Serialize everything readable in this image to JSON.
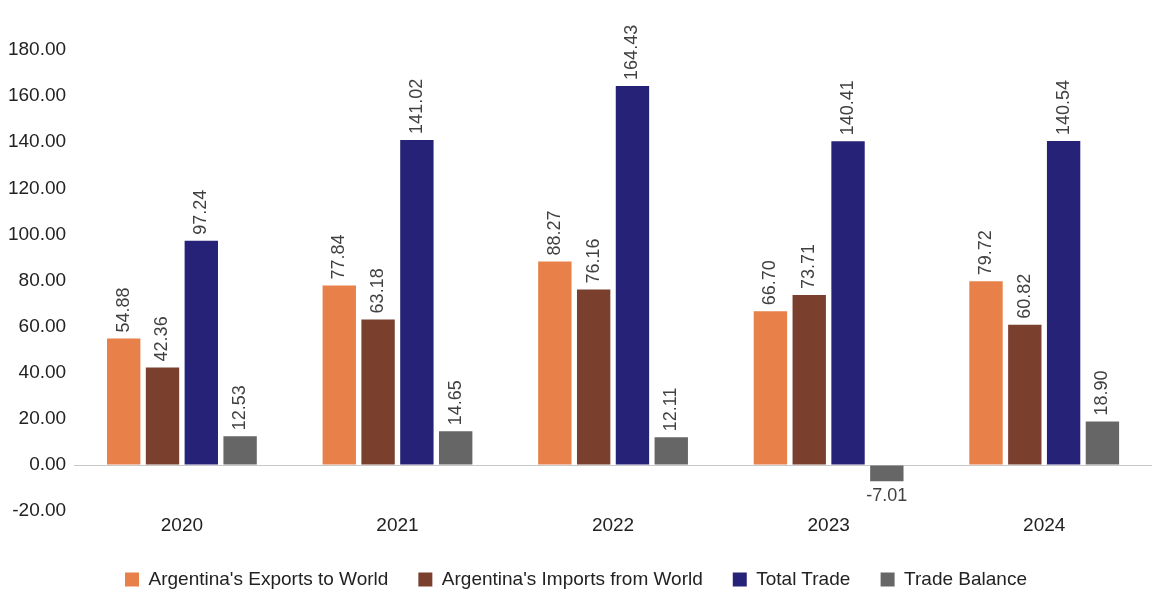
{
  "chart_data": {
    "type": "bar",
    "categories": [
      "2020",
      "2021",
      "2022",
      "2023",
      "2024"
    ],
    "series": [
      {
        "name": "Argentina's Exports to World",
        "color": "#e8804a",
        "values": [
          54.88,
          77.84,
          88.27,
          66.7,
          79.72
        ],
        "value_labels": [
          "54.88",
          "77.84",
          "88.27",
          "66.70",
          "79.72"
        ]
      },
      {
        "name": "Argentina's Imports from World",
        "color": "#7b3f2e",
        "values": [
          42.36,
          63.18,
          76.16,
          73.71,
          60.82
        ],
        "value_labels": [
          "42.36",
          "63.18",
          "76.16",
          "73.71",
          "60.82"
        ]
      },
      {
        "name": "Total Trade",
        "color": "#262277",
        "values": [
          97.24,
          141.02,
          164.43,
          140.41,
          140.54
        ],
        "value_labels": [
          "97.24",
          "141.02",
          "164.43",
          "140.41",
          "140.54"
        ]
      },
      {
        "name": "Trade Balance",
        "color": "#666666",
        "values": [
          12.53,
          14.65,
          12.11,
          -7.01,
          18.9
        ],
        "value_labels": [
          "12.53",
          "14.65",
          "12.11",
          "-7.01",
          "18.90"
        ]
      }
    ],
    "ylim": [
      -20,
      180
    ],
    "yticks": [
      {
        "value": -20,
        "label": "-20.00"
      },
      {
        "value": 0,
        "label": "0.00"
      },
      {
        "value": 20,
        "label": "20.00"
      },
      {
        "value": 40,
        "label": "40.00"
      },
      {
        "value": 60,
        "label": "60.00"
      },
      {
        "value": 80,
        "label": "80.00"
      },
      {
        "value": 100,
        "label": "100.00"
      },
      {
        "value": 120,
        "label": "120.00"
      },
      {
        "value": 140,
        "label": "140.00"
      },
      {
        "value": 160,
        "label": "160.00"
      },
      {
        "value": 180,
        "label": "180.00"
      }
    ],
    "legend": "bottom"
  }
}
